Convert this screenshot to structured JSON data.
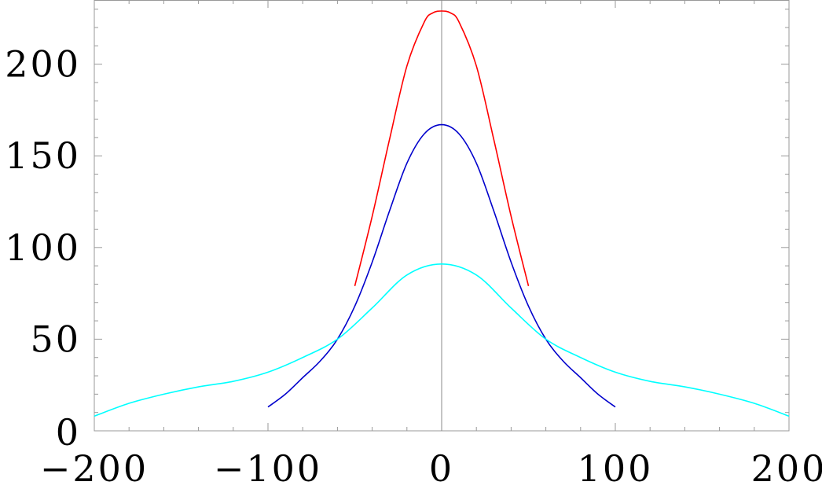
{
  "chart_data": {
    "type": "line",
    "title": "",
    "xlabel": "",
    "ylabel": "",
    "xlim": [
      -200,
      200
    ],
    "ylim": [
      0,
      235
    ],
    "x_ticks": [
      -200,
      -100,
      0,
      100,
      200
    ],
    "x_tick_labels": [
      "−200",
      "−100",
      "0",
      "100",
      "200"
    ],
    "y_ticks": [
      0,
      50,
      100,
      150,
      200
    ],
    "y_tick_labels": [
      "0",
      "50",
      "100",
      "150",
      "200"
    ],
    "grid": false,
    "series": [
      {
        "color": "#ff0000",
        "x": [
          -50,
          -40,
          -30,
          -20,
          -10,
          -5,
          0,
          5,
          10,
          20,
          30,
          40,
          50
        ],
        "y": [
          79,
          117,
          159,
          199,
          223,
          228,
          229,
          228,
          223,
          199,
          159,
          117,
          79
        ]
      },
      {
        "color": "#0000cc",
        "x": [
          -100,
          -90,
          -80,
          -70,
          -60,
          -50,
          -40,
          -30,
          -20,
          -10,
          0,
          10,
          20,
          30,
          40,
          50,
          60,
          70,
          80,
          90,
          100
        ],
        "y": [
          13,
          20,
          29,
          38,
          50,
          68,
          92,
          120,
          146,
          162,
          167,
          162,
          146,
          120,
          92,
          68,
          50,
          38,
          29,
          20,
          13
        ]
      },
      {
        "color": "#00ffff",
        "x": [
          -200,
          -180,
          -160,
          -140,
          -120,
          -100,
          -80,
          -60,
          -40,
          -20,
          0,
          20,
          40,
          60,
          80,
          100,
          120,
          140,
          160,
          180,
          200
        ],
        "y": [
          8,
          15,
          20,
          24,
          27,
          32,
          40,
          50,
          67,
          85,
          91,
          85,
          67,
          50,
          40,
          32,
          27,
          24,
          20,
          15,
          8
        ]
      }
    ]
  }
}
